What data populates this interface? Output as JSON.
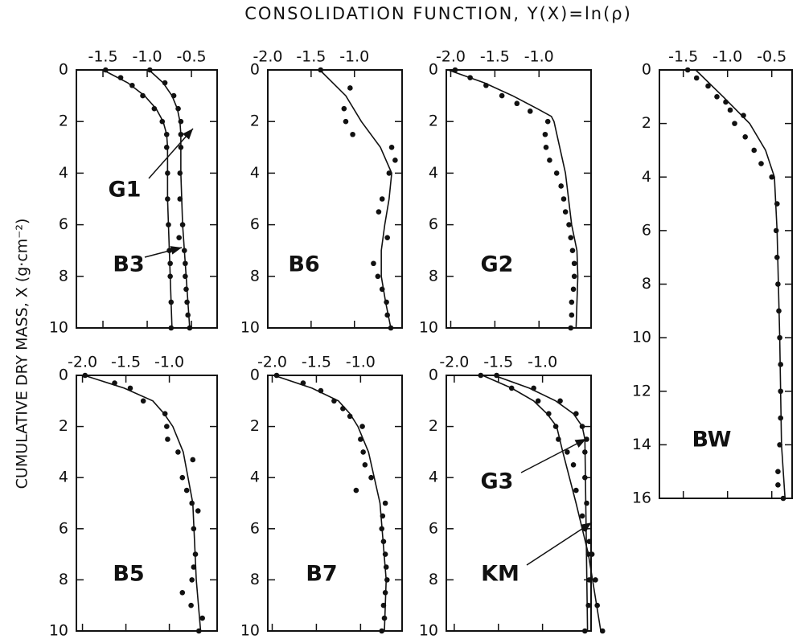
{
  "figure_title": "CONSOLIDATION FUNCTION,  Y(X)=ln(ρ)",
  "figure_y_label": "CUMULATIVE DRY MASS,  X  (g·cm⁻²)",
  "chart_data": [
    {
      "type": "scatter",
      "xlim": [
        -1.8,
        -0.21
      ],
      "xticks": [
        -1.5,
        {
          "value": -1,
          "label": "-1.0"
        },
        -0.5
      ],
      "ylim": [
        0,
        10
      ],
      "yticks": [
        0,
        2,
        4,
        6,
        8,
        10
      ],
      "y_inverted": true,
      "series": [
        {
          "name": "G1",
          "points_y": [
            0,
            0.5,
            1,
            1.5,
            2,
            2.5,
            3,
            4,
            5,
            6,
            6.5,
            7,
            7.5,
            8,
            8.5,
            9,
            9.5,
            10
          ],
          "points_x": [
            -0.97,
            -0.8,
            -0.7,
            -0.65,
            -0.62,
            -0.62,
            -0.62,
            -0.63,
            -0.63,
            -0.6,
            -0.64,
            -0.58,
            -0.57,
            -0.57,
            -0.56,
            -0.55,
            -0.54,
            -0.52
          ],
          "line_y": [
            0,
            0.5,
            1,
            1.5,
            2,
            2.5,
            4,
            6,
            8,
            10
          ],
          "line_x": [
            -0.98,
            -0.82,
            -0.72,
            -0.66,
            -0.63,
            -0.62,
            -0.62,
            -0.6,
            -0.56,
            -0.52
          ]
        },
        {
          "name": "B3",
          "points_y": [
            0,
            0.3,
            0.6,
            1,
            1.5,
            2,
            2.5,
            3,
            4,
            5,
            6,
            7,
            7.5,
            8,
            9,
            10
          ],
          "points_x": [
            -1.47,
            -1.3,
            -1.17,
            -1.05,
            -0.92,
            -0.83,
            -0.78,
            -0.78,
            -0.77,
            -0.77,
            -0.76,
            -0.75,
            -0.74,
            -0.74,
            -0.73,
            -0.73
          ],
          "line_y": [
            0,
            0.5,
            1,
            1.5,
            2,
            2.5,
            3,
            5,
            7,
            10
          ],
          "line_x": [
            -1.5,
            -1.22,
            -1.03,
            -0.9,
            -0.82,
            -0.78,
            -0.77,
            -0.77,
            -0.75,
            -0.72
          ]
        }
      ]
    },
    {
      "type": "scatter",
      "xlim": [
        -2.0,
        -0.45
      ],
      "xticks": [
        {
          "value": -2,
          "label": "-2.0"
        },
        -1.5,
        {
          "value": -1,
          "label": "-1.0"
        }
      ],
      "ylim": [
        0,
        10
      ],
      "yticks": [
        0,
        2,
        4,
        6,
        8,
        10
      ],
      "y_inverted": true,
      "series": [
        {
          "name": "B6",
          "points_y": [
            0,
            0.7,
            1.5,
            2,
            2.5,
            3,
            3.5,
            4,
            5,
            5.5,
            6.5,
            7.5,
            8,
            8.5,
            9,
            9.5,
            10
          ],
          "points_x": [
            -1.39,
            -1.05,
            -1.12,
            -1.1,
            -1.02,
            -0.57,
            -0.53,
            -0.6,
            -0.68,
            -0.72,
            -0.62,
            -0.78,
            -0.73,
            -0.68,
            -0.63,
            -0.62,
            -0.58
          ],
          "line_y": [
            0,
            1,
            2,
            3,
            4,
            5,
            6,
            7,
            8,
            9,
            10
          ],
          "line_x": [
            -1.4,
            -1.1,
            -0.92,
            -0.7,
            -0.57,
            -0.6,
            -0.65,
            -0.69,
            -0.69,
            -0.64,
            -0.58
          ]
        }
      ]
    },
    {
      "type": "scatter",
      "xlim": [
        -2.05,
        -0.41
      ],
      "xticks": [
        {
          "value": -2,
          "label": "-2.0"
        },
        -1.5,
        {
          "value": -1,
          "label": "-1.0"
        }
      ],
      "ylim": [
        0,
        10
      ],
      "yticks": [
        0,
        2,
        4,
        6,
        8,
        10
      ],
      "y_inverted": true,
      "series": [
        {
          "name": "G2",
          "points_y": [
            0,
            0.3,
            0.6,
            1,
            1.3,
            1.6,
            2,
            2.5,
            3,
            3.5,
            4,
            4.5,
            5,
            5.5,
            6,
            6.5,
            7,
            7.5,
            8,
            8.5,
            9,
            9.5,
            10
          ],
          "points_x": [
            -1.95,
            -1.78,
            -1.6,
            -1.42,
            -1.25,
            -1.1,
            -0.9,
            -0.93,
            -0.92,
            -0.88,
            -0.8,
            -0.75,
            -0.72,
            -0.7,
            -0.66,
            -0.64,
            -0.62,
            -0.6,
            -0.6,
            -0.61,
            -0.63,
            -0.63,
            -0.64
          ],
          "line_y": [
            0,
            0.5,
            1,
            1.5,
            1.8,
            2,
            4,
            6,
            7,
            8,
            10
          ],
          "line_x": [
            -2.03,
            -1.62,
            -1.3,
            -1.02,
            -0.86,
            -0.83,
            -0.7,
            -0.63,
            -0.57,
            -0.56,
            -0.58
          ]
        }
      ]
    },
    {
      "type": "scatter",
      "xlim": [
        -1.77,
        -0.27
      ],
      "xticks": [
        -1.5,
        {
          "value": -1,
          "label": "-1.0"
        },
        -0.5
      ],
      "ylim": [
        0,
        16
      ],
      "yticks": [
        0,
        2,
        4,
        6,
        8,
        10,
        12,
        14,
        16
      ],
      "y_inverted": true,
      "series": [
        {
          "name": "BW",
          "points_y": [
            0,
            0.3,
            0.6,
            1,
            1.2,
            1.5,
            1.7,
            2,
            2.5,
            3,
            3.5,
            4,
            5,
            6,
            7,
            8,
            9,
            10,
            11,
            12,
            13,
            14,
            15,
            15.5,
            16
          ],
          "points_x": [
            -1.45,
            -1.35,
            -1.22,
            -1.12,
            -1.02,
            -0.97,
            -0.82,
            -0.92,
            -0.8,
            -0.7,
            -0.62,
            -0.5,
            -0.44,
            -0.45,
            -0.44,
            -0.43,
            -0.42,
            -0.41,
            -0.4,
            -0.4,
            -0.4,
            -0.41,
            -0.43,
            -0.43,
            -0.37
          ],
          "line_y": [
            0,
            1,
            2,
            3,
            4,
            6,
            10,
            14,
            16
          ],
          "line_x": [
            -1.36,
            -1.05,
            -0.75,
            -0.57,
            -0.47,
            -0.44,
            -0.41,
            -0.39,
            -0.35
          ]
        }
      ]
    },
    {
      "type": "scatter",
      "xlim": [
        -2.07,
        -0.45
      ],
      "xticks": [
        {
          "value": -2,
          "label": "-2.0"
        },
        -1.5,
        {
          "value": -1,
          "label": "-1.0"
        }
      ],
      "ylim": [
        0,
        10
      ],
      "yticks": [
        0,
        2,
        4,
        6,
        8,
        10
      ],
      "y_inverted": true,
      "series": [
        {
          "name": "B5",
          "points_y": [
            0,
            0.3,
            0.5,
            1,
            1.5,
            2,
            2.5,
            3,
            3.3,
            4,
            4.5,
            5,
            5.3,
            6,
            7,
            7.5,
            8,
            8.5,
            9,
            9.5,
            10
          ],
          "points_x": [
            -1.97,
            -1.63,
            -1.45,
            -1.3,
            -1.05,
            -1.03,
            -1.02,
            -0.9,
            -0.73,
            -0.85,
            -0.8,
            -0.74,
            -0.67,
            -0.72,
            -0.7,
            -0.72,
            -0.74,
            -0.85,
            -0.75,
            -0.62,
            -0.66
          ],
          "line_y": [
            0,
            0.5,
            1,
            1.5,
            2,
            3,
            5,
            8,
            10
          ],
          "line_x": [
            -1.98,
            -1.52,
            -1.19,
            -1.06,
            -0.96,
            -0.84,
            -0.73,
            -0.69,
            -0.64
          ]
        }
      ]
    },
    {
      "type": "scatter",
      "xlim": [
        -2.05,
        -0.53
      ],
      "xticks": [
        {
          "value": -2,
          "label": "-2.0"
        },
        -1.5,
        {
          "value": -1,
          "label": "-1.0"
        }
      ],
      "ylim": [
        0,
        10
      ],
      "yticks": [
        0,
        2,
        4,
        6,
        8,
        10
      ],
      "y_inverted": true,
      "series": [
        {
          "name": "B7",
          "points_y": [
            0,
            0.3,
            0.6,
            1,
            1.3,
            1.6,
            2,
            2.5,
            3,
            3.5,
            4,
            4.5,
            5,
            5.5,
            6,
            6.5,
            7,
            7.5,
            8,
            8.5,
            9,
            9.5,
            10
          ],
          "points_x": [
            -1.95,
            -1.65,
            -1.45,
            -1.3,
            -1.2,
            -1.12,
            -0.98,
            -1.0,
            -0.97,
            -0.95,
            -0.88,
            -1.05,
            -0.72,
            -0.75,
            -0.76,
            -0.74,
            -0.72,
            -0.71,
            -0.7,
            -0.72,
            -0.74,
            -0.73,
            -0.76
          ],
          "line_y": [
            0,
            0.5,
            1,
            1.5,
            2,
            3,
            5,
            8,
            10
          ],
          "line_x": [
            -1.98,
            -1.55,
            -1.25,
            -1.12,
            -1.03,
            -0.91,
            -0.78,
            -0.71,
            -0.73
          ]
        }
      ]
    },
    {
      "type": "scatter",
      "xlim": [
        -2.09,
        -0.45
      ],
      "xticks": [
        {
          "value": -2,
          "label": "-2.0"
        },
        -1.5,
        {
          "value": -1,
          "label": "-1.0"
        }
      ],
      "ylim": [
        0,
        10
      ],
      "yticks": [
        0,
        2,
        4,
        6,
        8,
        10
      ],
      "y_inverted": true,
      "series": [
        {
          "name": "G3",
          "points_y": [
            0,
            0.5,
            1,
            1.5,
            2,
            2.5,
            3,
            4,
            5,
            6,
            7,
            8,
            9,
            10
          ],
          "points_x": [
            -1.52,
            -1.1,
            -0.8,
            -0.62,
            -0.55,
            -0.5,
            -0.52,
            -0.52,
            -0.5,
            -0.52,
            -0.48,
            -0.47,
            -0.48,
            -0.52
          ],
          "line_y": [
            0,
            0.5,
            1,
            1.5,
            2,
            2.5,
            10
          ],
          "line_x": [
            -1.55,
            -1.15,
            -0.85,
            -0.65,
            -0.55,
            -0.52,
            -0.49
          ]
        },
        {
          "name": "KM",
          "points_y": [
            0,
            0.5,
            1,
            1.5,
            2,
            2.5,
            3,
            3.5,
            4.5,
            5.5,
            6.5,
            7,
            8,
            9,
            10
          ],
          "points_x": [
            -1.7,
            -1.35,
            -1.05,
            -0.93,
            -0.85,
            -0.82,
            -0.72,
            -0.65,
            -0.62,
            -0.55,
            -0.47,
            -0.44,
            -0.4,
            -0.38,
            -0.32
          ],
          "line_y": [
            0,
            0.5,
            1,
            1.5,
            2,
            3,
            5,
            7,
            10
          ],
          "line_x": [
            -1.68,
            -1.35,
            -1.1,
            -0.95,
            -0.84,
            -0.77,
            -0.62,
            -0.48,
            -0.34
          ]
        }
      ]
    }
  ]
}
